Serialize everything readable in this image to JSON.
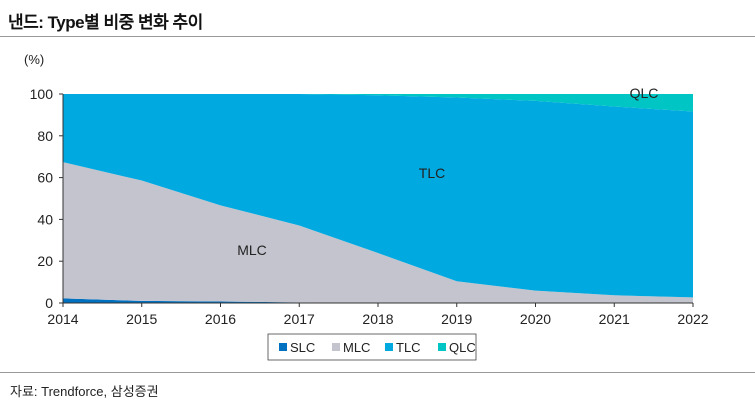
{
  "title": "낸드: Type별 비중 변화 추이",
  "source": "자료: Trendforce, 삼성증권",
  "chart_data": {
    "type": "area",
    "stacked": true,
    "title": "낸드: Type별 비중 변화 추이",
    "ylabel": "(%)",
    "xlabel": "",
    "ylim": [
      0,
      100
    ],
    "yticks": [
      0,
      20,
      40,
      60,
      80,
      100
    ],
    "categories": [
      "2014",
      "2015",
      "2016",
      "2017",
      "2018",
      "2019",
      "2020",
      "2021",
      "2022"
    ],
    "series": [
      {
        "name": "SLC",
        "color": "#0070c0",
        "values": [
          2.2,
          1.0,
          0.7,
          0.3,
          0,
          0,
          0,
          0,
          0
        ]
      },
      {
        "name": "MLC",
        "color": "#c3c4ce",
        "values": [
          65.2,
          57.6,
          46.0,
          36.8,
          23.9,
          10.4,
          5.9,
          3.7,
          2.7
        ]
      },
      {
        "name": "TLC",
        "color": "#00a9e0",
        "values": [
          32.6,
          41.4,
          53.3,
          62.9,
          75.5,
          87.9,
          90.8,
          90.3,
          88.9
        ]
      },
      {
        "name": "QLC",
        "color": "#00c5c5",
        "values": [
          0,
          0,
          0,
          0,
          0.6,
          1.7,
          3.3,
          6.0,
          8.4
        ]
      }
    ],
    "annotations": [
      {
        "text": "MLC",
        "series": "MLC"
      },
      {
        "text": "TLC",
        "series": "TLC"
      },
      {
        "text": "QLC",
        "series": "QLC"
      }
    ],
    "legend": "bottom-center"
  }
}
